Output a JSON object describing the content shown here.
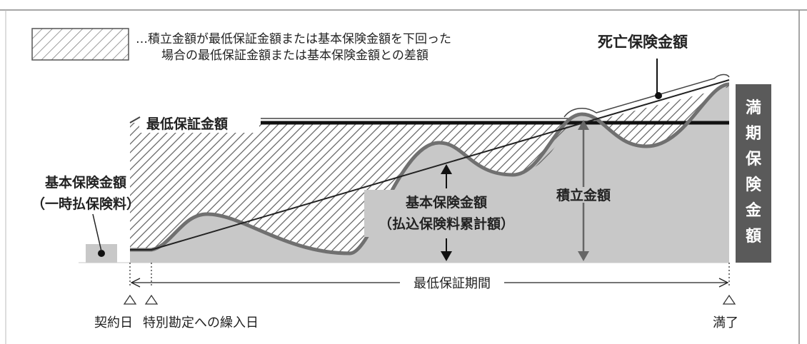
{
  "legend": {
    "line1": "…積立金額が最低保証金額または基本保険金額を下回った",
    "line2": "場合の最低保証金額または基本保険金額との差額"
  },
  "labels": {
    "death_benefit": "死亡保険金額",
    "minimum_guarantee": "最低保証金額",
    "basic_amount_line1": "基本保険金額",
    "basic_amount_line2": "（一時払保険料）",
    "basic_amount_center_line1": "基本保険金額",
    "basic_amount_center_line2": "（払込保険料累計額）",
    "reserve": "積立金額",
    "maturity_chars": [
      "満",
      "期",
      "保",
      "険",
      "金",
      "額"
    ],
    "period": "最低保証期間"
  },
  "timeline": {
    "contract_date": "契約日",
    "transfer_date": "特別勘定への繰入日",
    "maturity": "満了"
  },
  "colors": {
    "frame": "#888888",
    "fill_gray": "#c8c8c8",
    "curve_gray": "#707070",
    "maturity_box": "#5a5a5a",
    "hatch": "#666666",
    "black": "#111111"
  }
}
